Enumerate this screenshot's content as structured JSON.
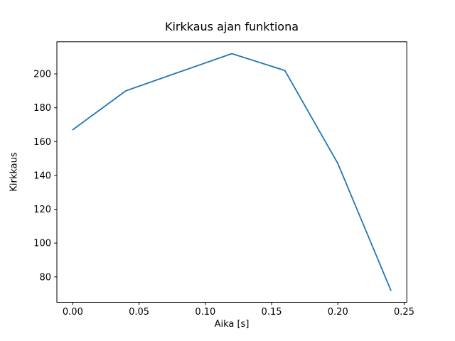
{
  "chart_data": {
    "type": "line",
    "title": "Kirkkaus ajan funktiona",
    "xlabel": "Aika [s]",
    "ylabel": "Kirkkaus",
    "x": [
      0.0,
      0.04,
      0.08,
      0.12,
      0.16,
      0.2,
      0.24
    ],
    "y": [
      167,
      190,
      201,
      212,
      202,
      147,
      72
    ],
    "series_name": "Kirkkaus",
    "xlim": [
      -0.012,
      0.252
    ],
    "ylim": [
      65,
      219
    ],
    "xtick_labels": [
      "0.00",
      "0.05",
      "0.10",
      "0.15",
      "0.20",
      "0.25"
    ],
    "xtick_values": [
      0.0,
      0.05,
      0.1,
      0.15,
      0.2,
      0.25
    ],
    "ytick_labels": [
      "80",
      "100",
      "120",
      "140",
      "160",
      "180",
      "200"
    ],
    "ytick_values": [
      80,
      100,
      120,
      140,
      160,
      180,
      200
    ],
    "line_color": "#1f77b4",
    "axis_color": "#000000",
    "background_color": "#ffffff",
    "grid": false,
    "legend": null
  }
}
